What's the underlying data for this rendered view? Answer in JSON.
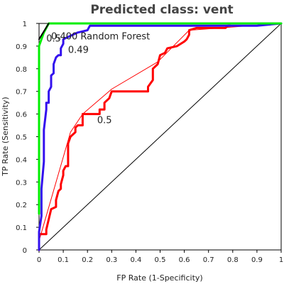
{
  "chart_data": {
    "type": "line",
    "title": "Predicted class: vent",
    "xlabel": "FP Rate (1-Specificity)",
    "ylabel": "TP Rate (Sensitivity)",
    "xlim": [
      0,
      1
    ],
    "ylim": [
      0,
      1
    ],
    "xticks": [
      "0",
      "0.1",
      "0.2",
      "0.3",
      "0.4",
      "0.5",
      "0.6",
      "0.7",
      "0.8",
      "0.9",
      "1"
    ],
    "yticks": [
      "0",
      "0.1",
      "0.2",
      "0.3",
      "0.4",
      "0.5",
      "0.6",
      "0.7",
      "0.8",
      "0.9",
      "1"
    ],
    "grid": false,
    "diagonal": {
      "x": [
        0,
        1
      ],
      "y": [
        0,
        1
      ],
      "color": "#000000"
    },
    "series": [
      {
        "color": "#ff0000",
        "points": [
          [
            0,
            0
          ],
          [
            0,
            0.07
          ],
          [
            0.03,
            0.07
          ],
          [
            0.03,
            0.09
          ],
          [
            0.05,
            0.18
          ],
          [
            0.07,
            0.19
          ],
          [
            0.07,
            0.22
          ],
          [
            0.08,
            0.26
          ],
          [
            0.09,
            0.27
          ],
          [
            0.09,
            0.29
          ],
          [
            0.1,
            0.33
          ],
          [
            0.1,
            0.35
          ],
          [
            0.11,
            0.37
          ],
          [
            0.12,
            0.37
          ],
          [
            0.12,
            0.47
          ],
          [
            0.13,
            0.5
          ],
          [
            0.15,
            0.52
          ],
          [
            0.15,
            0.54
          ],
          [
            0.16,
            0.55
          ],
          [
            0.18,
            0.55
          ],
          [
            0.18,
            0.6
          ],
          [
            0.25,
            0.6
          ],
          [
            0.25,
            0.62
          ],
          [
            0.27,
            0.62
          ],
          [
            0.27,
            0.65
          ],
          [
            0.29,
            0.67
          ],
          [
            0.3,
            0.7
          ],
          [
            0.45,
            0.7
          ],
          [
            0.45,
            0.72
          ],
          [
            0.47,
            0.75
          ],
          [
            0.47,
            0.8
          ],
          [
            0.49,
            0.82
          ],
          [
            0.5,
            0.86
          ],
          [
            0.52,
            0.87
          ],
          [
            0.53,
            0.89
          ],
          [
            0.57,
            0.9
          ],
          [
            0.6,
            0.92
          ],
          [
            0.61,
            0.93
          ],
          [
            0.62,
            0.95
          ],
          [
            0.62,
            0.97
          ],
          [
            0.65,
            0.98
          ],
          [
            0.77,
            0.98
          ],
          [
            0.78,
            0.99
          ],
          [
            0.79,
            0.99
          ]
        ]
      },
      {
        "color": "#ff0000",
        "points": [
          [
            0,
            0.04
          ],
          [
            0.13,
            0.52
          ],
          [
            0.18,
            0.6
          ],
          [
            0.3,
            0.71
          ],
          [
            0.49,
            0.83
          ],
          [
            0.62,
            0.97
          ],
          [
            1,
            1
          ]
        ]
      },
      {
        "color": "#3311ee",
        "points": [
          [
            0,
            0
          ],
          [
            0,
            0.08
          ],
          [
            0.01,
            0.15
          ],
          [
            0.01,
            0.27
          ],
          [
            0.02,
            0.39
          ],
          [
            0.02,
            0.53
          ],
          [
            0.03,
            0.62
          ],
          [
            0.03,
            0.65
          ],
          [
            0.04,
            0.65
          ],
          [
            0.04,
            0.7
          ],
          [
            0.05,
            0.72
          ],
          [
            0.05,
            0.77
          ],
          [
            0.06,
            0.78
          ],
          [
            0.06,
            0.82
          ],
          [
            0.07,
            0.85
          ],
          [
            0.08,
            0.86
          ],
          [
            0.09,
            0.86
          ],
          [
            0.09,
            0.89
          ],
          [
            0.1,
            0.91
          ],
          [
            0.1,
            0.93
          ],
          [
            0.12,
            0.94
          ],
          [
            0.14,
            0.95
          ],
          [
            0.16,
            0.96
          ],
          [
            0.2,
            0.97
          ],
          [
            0.21,
            0.99
          ],
          [
            0.9,
            0.99
          ],
          [
            1,
            1
          ]
        ]
      },
      {
        "color": "#00ee00",
        "points": [
          [
            0,
            0.16
          ],
          [
            0,
            0.9
          ],
          [
            0.01,
            0.93
          ],
          [
            0.02,
            0.96
          ],
          [
            0.03,
            0.98
          ],
          [
            0.04,
            1
          ],
          [
            1,
            1
          ]
        ]
      },
      {
        "color": "#000000",
        "points": [
          [
            0,
            0.93
          ],
          [
            0.04,
            1
          ]
        ]
      }
    ],
    "annotations": [
      {
        "text": "0.5",
        "x": 0.03,
        "y": 0.92
      },
      {
        "text": "0.400 Random Forest",
        "x": 0.05,
        "y": 0.93
      },
      {
        "text": "0.49",
        "x": 0.12,
        "y": 0.87
      },
      {
        "text": "0.5",
        "x": 0.24,
        "y": 0.56
      }
    ]
  }
}
